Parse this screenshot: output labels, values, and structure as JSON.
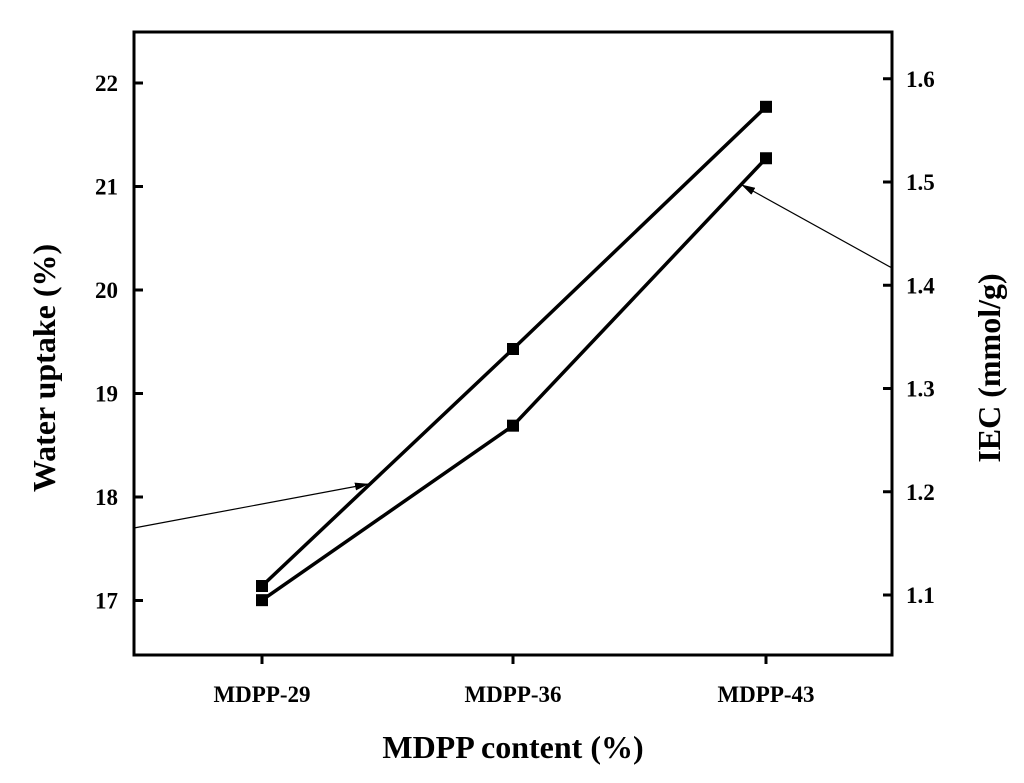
{
  "chart_data": {
    "type": "line",
    "categories": [
      "MDPP-29",
      "MDPP-36",
      "MDPP-43"
    ],
    "xlabel": "MDPP content (%)",
    "ylabel_left": "Water uptake (%)",
    "ylabel_right": "IEC (mmol/g)",
    "ylim_left": [
      16.5,
      22.5
    ],
    "ylim_right": [
      1.05,
      1.6
    ],
    "yticks_left": [
      17,
      18,
      19,
      20,
      21,
      22
    ],
    "yticks_right": [
      1.1,
      1.2,
      1.3,
      1.4,
      1.5,
      1.6
    ],
    "ytick_labels_left": [
      "17",
      "18",
      "19",
      "20",
      "21",
      "22"
    ],
    "ytick_labels_right": [
      "1.1",
      "1.2",
      "1.3",
      "1.4",
      "1.5",
      "1.6"
    ],
    "series": [
      {
        "axis": "left",
        "values": [
          17.14,
          19.43,
          21.77
        ]
      },
      {
        "axis": "right",
        "values": [
          1.095,
          1.264,
          1.523
        ]
      }
    ],
    "grid": false,
    "legend": "none",
    "marker": "square",
    "color": "#000000"
  }
}
